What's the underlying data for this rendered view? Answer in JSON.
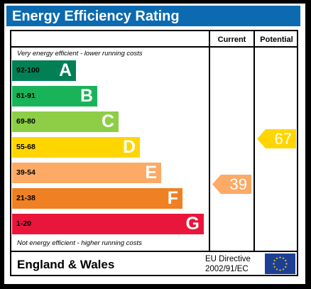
{
  "title": "Energy Efficiency Rating",
  "columns": {
    "current": "Current",
    "potential": "Potential"
  },
  "top_note": "Very energy efficient - lower running costs",
  "bottom_note": "Not energy efficient - higher running costs",
  "bands": [
    {
      "range": "92-100",
      "letter": "A",
      "color": "#008054",
      "range_color": "#000000"
    },
    {
      "range": "81-91",
      "letter": "B",
      "color": "#19b459",
      "range_color": "#000000"
    },
    {
      "range": "69-80",
      "letter": "C",
      "color": "#8dce46",
      "range_color": "#000000"
    },
    {
      "range": "55-68",
      "letter": "D",
      "color": "#ffd500",
      "range_color": "#000000"
    },
    {
      "range": "39-54",
      "letter": "E",
      "color": "#fcaa65",
      "range_color": "#000000"
    },
    {
      "range": "21-38",
      "letter": "F",
      "color": "#ef8023",
      "range_color": "#000000"
    },
    {
      "range": "1-20",
      "letter": "G",
      "color": "#e9153b",
      "range_color": "#000000"
    }
  ],
  "current": {
    "value": "39",
    "color": "#fcaa65"
  },
  "potential": {
    "value": "67",
    "color": "#ffd500"
  },
  "footer": {
    "region": "England & Wales",
    "directive_line1": "EU Directive",
    "directive_line2": "2002/91/EC"
  },
  "flag_color": "#1c3f94",
  "star_color": "#ffdd00"
}
